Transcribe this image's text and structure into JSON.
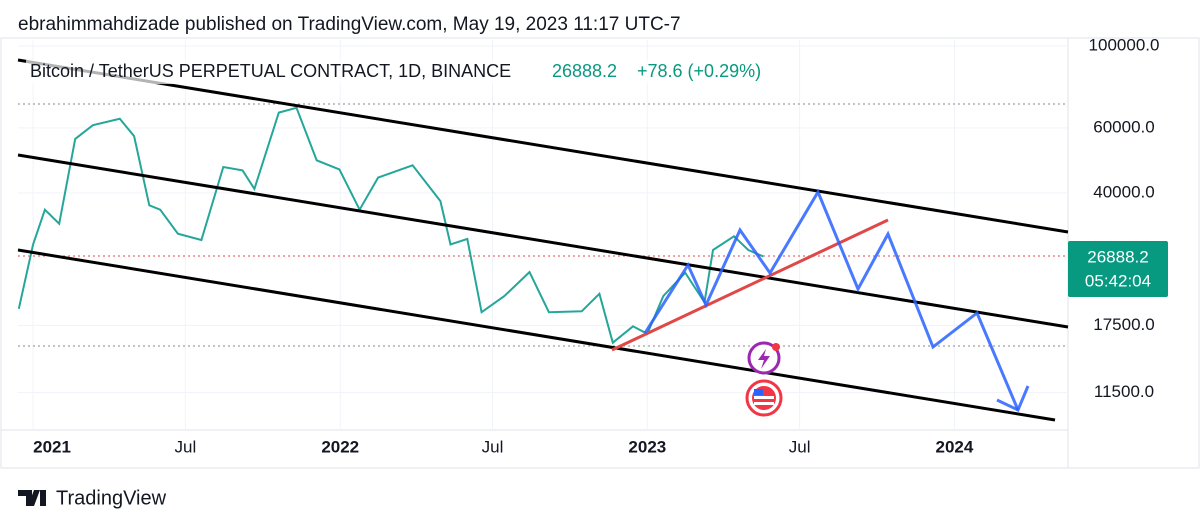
{
  "header": "ebrahimmahdizade published on TradingView.com, May 19, 2023 11:17 UTC-7",
  "footer": "TradingView",
  "chart_data": {
    "type": "line",
    "title": "Bitcoin / TetherUS PERPETUAL CONTRACT, 1D, BINANCE",
    "last_price": 26888.2,
    "change": "+78.6 (+0.29%)",
    "countdown": "05:42:04",
    "log_scale": true,
    "color": "#26a69a",
    "x": [
      "2020-12-15",
      "2021-01-01",
      "2021-01-15",
      "2021-02-01",
      "2021-02-20",
      "2021-03-13",
      "2021-04-14",
      "2021-05-01",
      "2021-05-19",
      "2021-06-01",
      "2021-06-22",
      "2021-07-20",
      "2021-08-15",
      "2021-09-07",
      "2021-09-21",
      "2021-10-20",
      "2021-11-10",
      "2021-12-04",
      "2021-12-31",
      "2022-01-24",
      "2022-02-15",
      "2022-03-28",
      "2022-04-30",
      "2022-05-12",
      "2022-06-01",
      "2022-06-18",
      "2022-07-15",
      "2022-08-14",
      "2022-09-06",
      "2022-10-15",
      "2022-11-05",
      "2022-11-21",
      "2022-12-15",
      "2023-01-01",
      "2023-01-20",
      "2023-02-15",
      "2023-03-10",
      "2023-03-20",
      "2023-04-14",
      "2023-05-01",
      "2023-05-19"
    ],
    "values": [
      19400,
      29000,
      36000,
      33000,
      56000,
      61000,
      63500,
      57000,
      37000,
      36000,
      31000,
      29800,
      47000,
      46000,
      41000,
      66000,
      68000,
      49000,
      46300,
      36000,
      44000,
      47500,
      38000,
      29000,
      30000,
      19000,
      21000,
      24400,
      19000,
      19100,
      21300,
      15700,
      17400,
      16600,
      21000,
      24300,
      20200,
      28000,
      30500,
      28000,
      26888.2
    ],
    "xlim": [
      "2020-12-14",
      "2024-05-15"
    ],
    "xticks": [
      {
        "value": "2021-01-01",
        "label": "2021"
      },
      {
        "value": "2021-07-01",
        "label": "Jul"
      },
      {
        "value": "2022-01-01",
        "label": "2022"
      },
      {
        "value": "2022-07-01",
        "label": "Jul"
      },
      {
        "value": "2023-01-01",
        "label": "2023"
      },
      {
        "value": "2023-07-01",
        "label": "Jul"
      },
      {
        "value": "2024-01-01",
        "label": "2024"
      }
    ],
    "ylim": [
      9108,
      103800
    ],
    "yticks": [
      {
        "value": 100000,
        "label": "100000.0"
      },
      {
        "value": 60000,
        "label": "60000.0"
      },
      {
        "value": 40000,
        "label": "40000.0"
      },
      {
        "value": 17500,
        "label": "17500.0"
      },
      {
        "value": 11500,
        "label": "11500.0"
      }
    ]
  }
}
